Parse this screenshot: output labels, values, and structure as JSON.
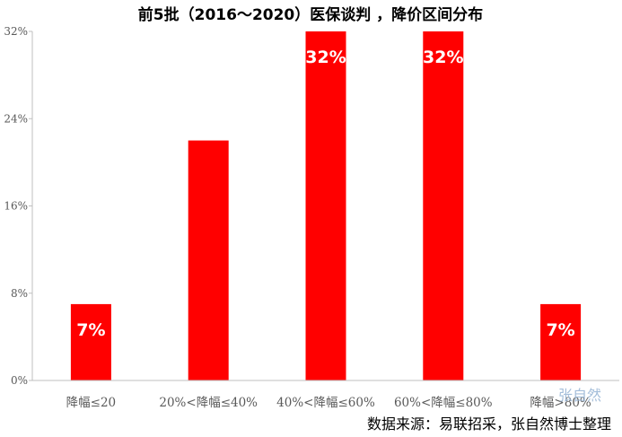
{
  "chart_data": {
    "type": "bar",
    "title": "前5批（2016～2020）医保谈判 ，降价区间分布",
    "categories": [
      "降幅≤20",
      "20%<降幅≤40%",
      "40%<降幅≤60%",
      "60%<降幅≤80%",
      "降幅>80%"
    ],
    "values": [
      7,
      22,
      32,
      32,
      7
    ],
    "data_labels": [
      "7%",
      "",
      "32%",
      "32%",
      "7%"
    ],
    "ylim": [
      0,
      32
    ],
    "yticks": [
      "0%",
      "8%",
      "16%",
      "24%",
      "32%"
    ],
    "ytick_values": [
      0,
      8,
      16,
      24,
      32
    ],
    "xlabel": "",
    "ylabel": "",
    "bar_color": "#ff0000",
    "grid": false,
    "legend": "none"
  },
  "source_note": "数据来源：易联招采，张自然博士整理",
  "watermark": "张自然"
}
